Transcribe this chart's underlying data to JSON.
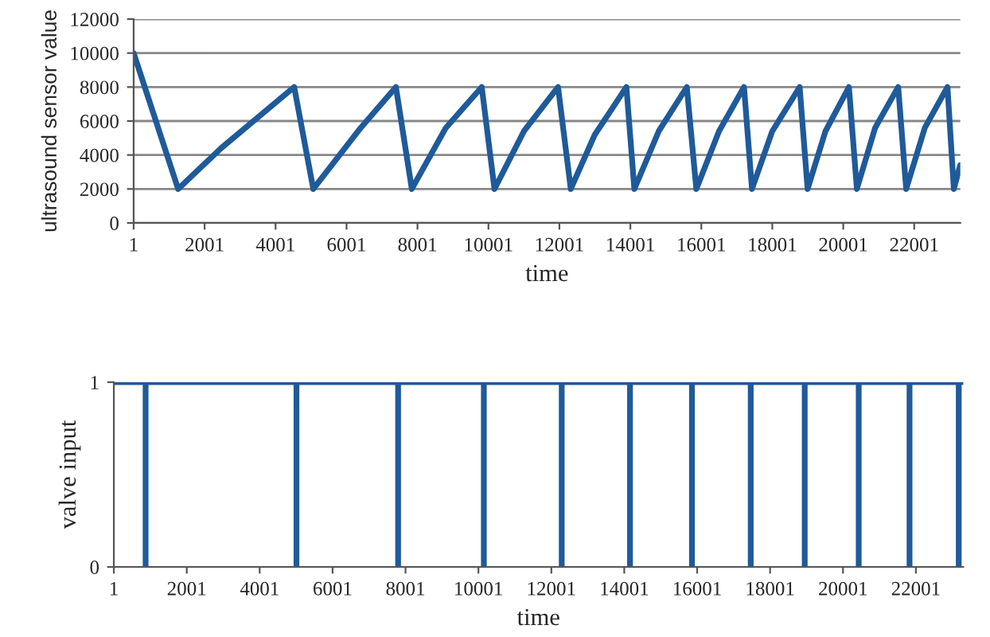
{
  "chart_data": [
    {
      "type": "line",
      "xlabel": "time",
      "ylabel": "ultrasound sensor value",
      "series": [
        {
          "color": "#1f5a9a",
          "x": [
            1,
            1255,
            2465,
            4526,
            5064,
            6400,
            7393,
            7841,
            8800,
            9812,
            10171,
            11000,
            11963,
            12321,
            13000,
            13889,
            14113,
            14800,
            15592,
            15860,
            16500,
            17204,
            17428,
            18000,
            18772,
            18996,
            19500,
            20161,
            20385,
            20900,
            21550,
            21774,
            22300,
            22939,
            23118,
            23297
          ],
          "values": [
            10000,
            2000,
            4400,
            8000,
            2000,
            5600,
            8000,
            2000,
            5600,
            8000,
            2000,
            5400,
            8000,
            2000,
            5200,
            8000,
            2000,
            5400,
            8000,
            2000,
            5400,
            8000,
            2000,
            5400,
            8000,
            2000,
            5400,
            8000,
            2000,
            5600,
            8000,
            2000,
            5600,
            8000,
            2000,
            3400
          ]
        }
      ],
      "xlim": [
        1,
        23300
      ],
      "xticks": [
        1,
        2001,
        4001,
        6001,
        8001,
        10001,
        12001,
        14001,
        16001,
        18001,
        20001,
        22001
      ],
      "ylim": [
        0,
        12000
      ],
      "yticks": [
        0,
        2000,
        4000,
        6000,
        8000,
        10000,
        12000
      ],
      "grid": "y",
      "line_style": "solid"
    },
    {
      "type": "line",
      "xlabel": "time",
      "ylabel": "valve input",
      "series": [
        {
          "color": "#1f5a9a",
          "x": [
            1,
            872,
            872,
            872,
            5010,
            5010,
            5010,
            7798,
            7798,
            7798,
            10150,
            10150,
            10150,
            12286,
            12286,
            12286,
            14159,
            14159,
            14159,
            15858,
            15858,
            15858,
            17470,
            17470,
            17470,
            18951,
            18951,
            18951,
            20432,
            20432,
            20432,
            21826,
            21826,
            21826,
            23176,
            23176,
            23176,
            23300
          ],
          "values": [
            1,
            1,
            0,
            1,
            1,
            0,
            1,
            1,
            0,
            1,
            1,
            0,
            1,
            1,
            0,
            1,
            1,
            0,
            1,
            1,
            0,
            1,
            1,
            0,
            1,
            1,
            0,
            1,
            1,
            0,
            1,
            1,
            0,
            1,
            1,
            0,
            1,
            1
          ]
        }
      ],
      "xlim": [
        1,
        23300
      ],
      "xticks": [
        1,
        2001,
        4001,
        6001,
        8001,
        10001,
        12001,
        14001,
        16001,
        18001,
        20001,
        22001
      ],
      "ylim": [
        0,
        1
      ],
      "yticks": [
        0,
        1
      ],
      "grid": false,
      "line_style": "solid"
    }
  ]
}
